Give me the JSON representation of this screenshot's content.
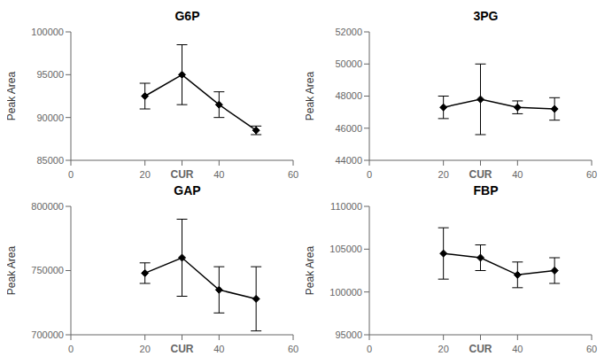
{
  "chart_data": [
    {
      "type": "line",
      "title": "G6P",
      "x": [
        20,
        30,
        40,
        50
      ],
      "values": [
        92500,
        95000,
        91500,
        88500
      ],
      "errors": [
        1500,
        3500,
        1500,
        500
      ],
      "xlim": [
        0,
        60
      ],
      "xticks": [
        0,
        20,
        {
          "value": 30,
          "label": "CUR"
        },
        40,
        60
      ],
      "ylim": [
        85000,
        100000
      ],
      "yticks": [
        85000,
        90000,
        95000,
        100000
      ],
      "ylabel": "Peak Area",
      "color": "black",
      "marker": "diamond"
    },
    {
      "type": "line",
      "title": "3PG",
      "x": [
        20,
        30,
        40,
        50
      ],
      "values": [
        47300,
        47800,
        47300,
        47200
      ],
      "errors": [
        700,
        2200,
        400,
        700
      ],
      "xlim": [
        0,
        60
      ],
      "xticks": [
        0,
        20,
        {
          "value": 30,
          "label": "CUR"
        },
        40,
        60
      ],
      "ylim": [
        44000,
        52000
      ],
      "yticks": [
        44000,
        46000,
        48000,
        50000,
        52000
      ],
      "ylabel": "Peak Area",
      "color": "black",
      "marker": "diamond"
    },
    {
      "type": "line",
      "title": "GAP",
      "x": [
        20,
        30,
        40,
        50
      ],
      "values": [
        748000,
        760000,
        735000,
        728000
      ],
      "errors": [
        8000,
        30000,
        18000,
        25000
      ],
      "xlim": [
        0,
        60
      ],
      "xticks": [
        0,
        20,
        {
          "value": 30,
          "label": "CUR"
        },
        40,
        60
      ],
      "ylim": [
        700000,
        800000
      ],
      "yticks": [
        700000,
        750000,
        800000
      ],
      "ylabel": "Peak Area",
      "color": "black",
      "marker": "diamond"
    },
    {
      "type": "line",
      "title": "FBP",
      "x": [
        20,
        30,
        40,
        50
      ],
      "values": [
        104500,
        104000,
        102000,
        102500
      ],
      "errors": [
        3000,
        1500,
        1500,
        1500
      ],
      "xlim": [
        0,
        60
      ],
      "xticks": [
        0,
        20,
        {
          "value": 30,
          "label": "CUR"
        },
        40,
        60
      ],
      "ylim": [
        95000,
        110000
      ],
      "yticks": [
        95000,
        100000,
        105000,
        110000
      ],
      "ylabel": "Peak Area",
      "color": "black",
      "marker": "diamond"
    }
  ]
}
